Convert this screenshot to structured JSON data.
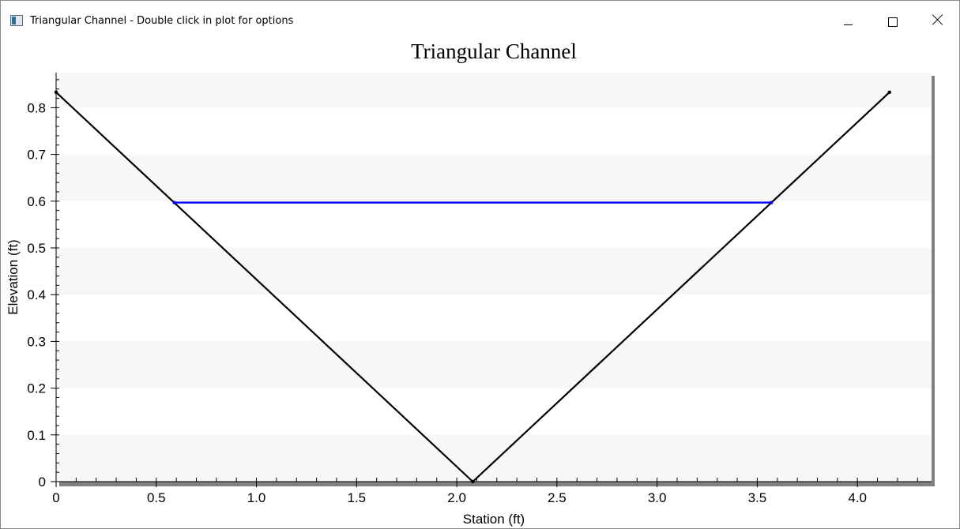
{
  "window": {
    "title": "Triangular Channel - Double click in plot for options"
  },
  "colors": {
    "channel": "#000000",
    "water_surface": "#0000ff",
    "band": "#f7f7f7",
    "plot_bg": "#ffffff",
    "shadow": "#808080"
  },
  "chart_data": {
    "type": "line",
    "title": "Triangular Channel",
    "xlabel": "Station (ft)",
    "ylabel": "Elevation (ft)",
    "xlim": [
      0,
      4.37
    ],
    "ylim": [
      0,
      0.875
    ],
    "x_ticks": [
      "0",
      "0.5",
      "1.0",
      "1.5",
      "2.0",
      "2.5",
      "3.0",
      "3.5",
      "4.0"
    ],
    "x_tick_values": [
      0,
      0.5,
      1.0,
      1.5,
      2.0,
      2.5,
      3.0,
      3.5,
      4.0
    ],
    "y_ticks": [
      "0",
      "0.1",
      "0.2",
      "0.3",
      "0.4",
      "0.5",
      "0.6",
      "0.7",
      "0.8"
    ],
    "y_tick_values": [
      0,
      0.1,
      0.2,
      0.3,
      0.4,
      0.5,
      0.6,
      0.7,
      0.8
    ],
    "grid": "alternating horizontal bands",
    "series": [
      {
        "role": "ground",
        "x": [
          0,
          2.08,
          4.16
        ],
        "y": [
          0.833,
          0,
          0.833
        ]
      },
      {
        "role": "water_surface",
        "x": [
          0.59,
          3.57
        ],
        "y": [
          0.597,
          0.597
        ]
      }
    ]
  }
}
